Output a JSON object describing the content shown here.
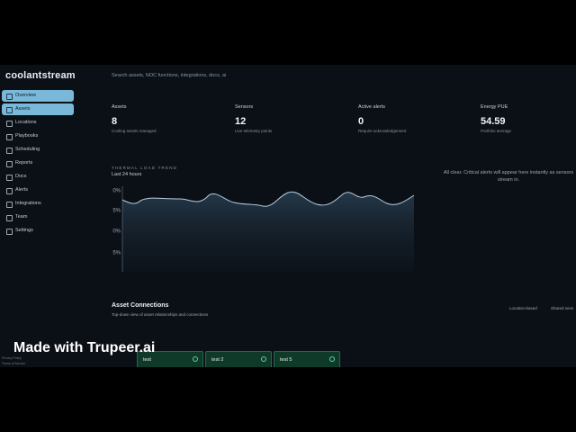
{
  "header": {
    "logo": "coolantstream",
    "search_placeholder": "Search assets, NOC functions, integrations, docs, ai"
  },
  "sidebar": [
    "Overview",
    "Assets",
    "Locations",
    "Playbooks",
    "Scheduling",
    "Reports",
    "Docs",
    "Alerts",
    "Integrations",
    "Team",
    "Settings"
  ],
  "stats": [
    {
      "label": "Assets",
      "value": "8",
      "sub": "Cooling assets managed"
    },
    {
      "label": "Sensors",
      "value": "12",
      "sub": "Live telemetry points"
    },
    {
      "label": "Active alerts",
      "value": "0",
      "sub": "Require acknowledgement"
    },
    {
      "label": "Energy PUE",
      "value": "54.59",
      "sub": "Portfolio average"
    }
  ],
  "trend": {
    "title": "THERMAL LOAD TREND",
    "subtitle": "Last 24 hours",
    "axis_labels": [
      "0%",
      "5%",
      "0%",
      "5%"
    ]
  },
  "alerts_message": "All clear. Critical alerts will appear here instantly as sensors stream in.",
  "connections": {
    "title": "Asset Connections",
    "subtitle": "Top-down view of asset relationships and connections",
    "legend": [
      "Location-based",
      "Shared sens"
    ]
  },
  "cards": [
    "test",
    "test 2",
    "test 5"
  ],
  "footer": [
    "Privacy Policy",
    "Terms of Service"
  ],
  "watermark": "Made with Trupeer.ai"
}
